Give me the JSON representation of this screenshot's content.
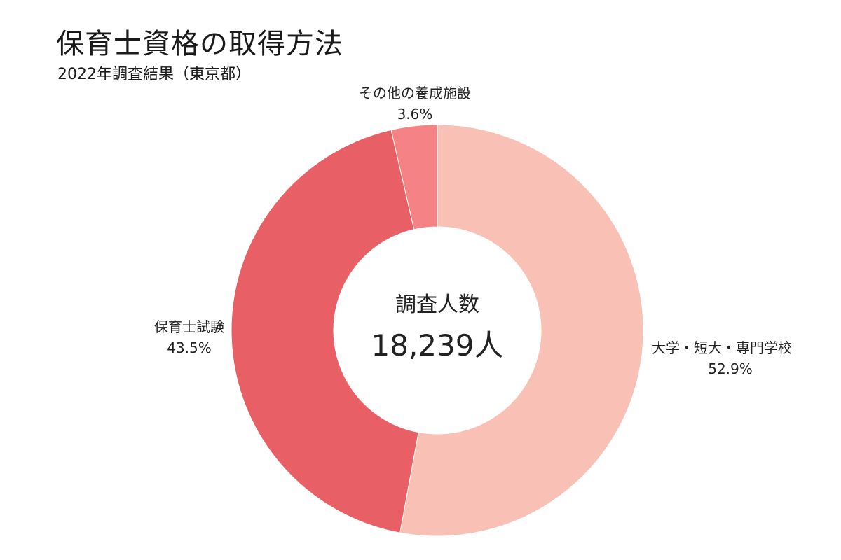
{
  "title": "保育士資格の取得方法",
  "subtitle": "2022年調査結果（東京都）",
  "center": {
    "label": "調査人数",
    "value": "18,239人"
  },
  "chart_data": {
    "type": "pie",
    "style": "donut",
    "total_label": "調査人数",
    "total": 18239,
    "total_unit": "人",
    "slices": [
      {
        "name": "大学・短大・専門学校",
        "value": 52.9,
        "label": "52.9%",
        "color": "#f9c0b5"
      },
      {
        "name": "保育士試験",
        "value": 43.5,
        "label": "43.5%",
        "color": "#e85f66"
      },
      {
        "name": "その他の養成施設",
        "value": 3.6,
        "label": "3.6%",
        "color": "#f58284"
      }
    ],
    "start": "12 o'clock",
    "direction": "clockwise",
    "legend": "none (labels outside slices)"
  }
}
